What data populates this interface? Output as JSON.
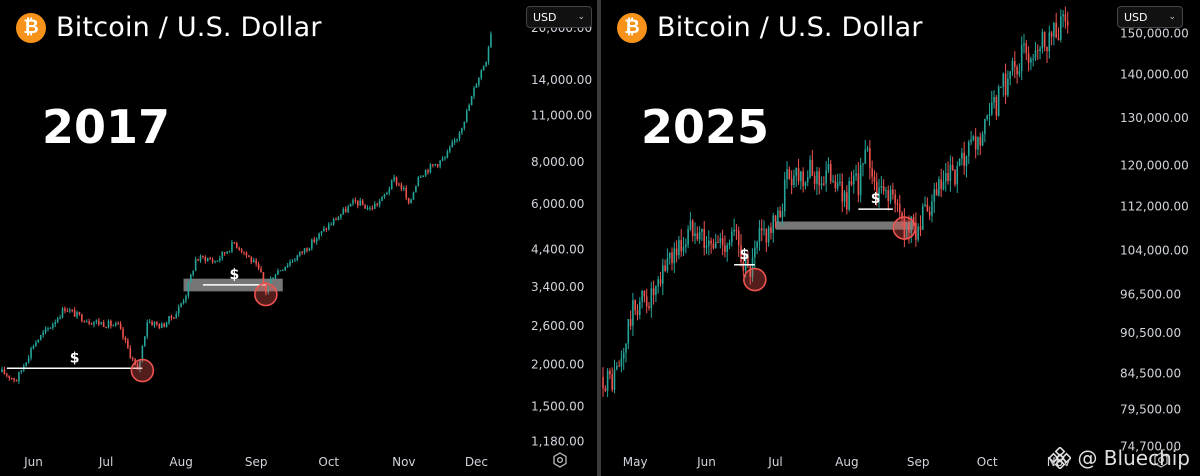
{
  "watermark": {
    "text": "@ Bluechip"
  },
  "colors": {
    "up": "#26a69a",
    "down": "#ef5350",
    "grid_text": "#d1d4dc",
    "btc": "#f7931a",
    "marker": "#ef5350",
    "zone": "#9e9e9e"
  },
  "chart_data": [
    {
      "type": "candlestick",
      "title": "Bitcoin / U.S. Dollar",
      "btc_symbol": "₿",
      "label": "2017",
      "currency": "USD",
      "chevron": "⌄",
      "scale": "log",
      "yrange": [
        1100,
        22000
      ],
      "yticks": [
        20000,
        14000,
        11000,
        8000,
        6000,
        4400,
        3400,
        2600,
        2000,
        1500,
        1180
      ],
      "ytick_labels": [
        "20,000.00",
        "14,000.00",
        "11,000.00",
        "8,000.00",
        "6,000.00",
        "4,400.00",
        "3,400.00",
        "2,600.00",
        "2,000.00",
        "1,500.00",
        "1,180.00"
      ],
      "xlabels": [
        "Jun",
        "Jul",
        "Aug",
        "Sep",
        "Oct",
        "Nov",
        "Dec"
      ],
      "xlabel_days": [
        13,
        43,
        74,
        105,
        135,
        166,
        196
      ],
      "day_range": [
        0,
        214
      ],
      "settings_icon": "gear-icon",
      "price_path": [
        [
          0,
          1900
        ],
        [
          6,
          1800
        ],
        [
          13,
          2300
        ],
        [
          20,
          2600
        ],
        [
          26,
          2950
        ],
        [
          31,
          2800
        ],
        [
          36,
          2700
        ],
        [
          42,
          2650
        ],
        [
          48,
          2600
        ],
        [
          53,
          2150
        ],
        [
          56,
          1900
        ],
        [
          60,
          2700
        ],
        [
          66,
          2600
        ],
        [
          72,
          2850
        ],
        [
          76,
          3250
        ],
        [
          80,
          4100
        ],
        [
          84,
          4150
        ],
        [
          88,
          4050
        ],
        [
          92,
          4300
        ],
        [
          96,
          4600
        ],
        [
          99,
          4400
        ],
        [
          104,
          4000
        ],
        [
          107,
          3700
        ],
        [
          109,
          3300
        ],
        [
          112,
          3700
        ],
        [
          116,
          3900
        ],
        [
          122,
          4200
        ],
        [
          128,
          4600
        ],
        [
          134,
          5100
        ],
        [
          140,
          5600
        ],
        [
          146,
          6100
        ],
        [
          152,
          5800
        ],
        [
          157,
          6200
        ],
        [
          162,
          7100
        ],
        [
          166,
          6600
        ],
        [
          168,
          5900
        ],
        [
          172,
          7300
        ],
        [
          178,
          7800
        ],
        [
          183,
          8200
        ],
        [
          188,
          9500
        ],
        [
          192,
          11200
        ],
        [
          196,
          13800
        ],
        [
          200,
          16200
        ],
        [
          202,
          19500
        ]
      ],
      "annotations": [
        {
          "label": "$",
          "y": 1950,
          "x1": 2,
          "x2": 58
        },
        {
          "label": "$",
          "y": 3450,
          "x1": 83,
          "x2": 109
        }
      ],
      "circles": [
        {
          "x": 58,
          "y": 1920
        },
        {
          "x": 109,
          "y": 3230
        }
      ],
      "zones": [
        {
          "x1": 75,
          "x2": 116,
          "y_low": 3300,
          "y_high": 3600
        }
      ]
    },
    {
      "type": "candlestick",
      "title": "Bitcoin / U.S. Dollar",
      "btc_symbol": "₿",
      "label": "2025",
      "currency": "USD",
      "chevron": "⌄",
      "scale": "log",
      "yrange": [
        74000,
        155000
      ],
      "yticks": [
        150000,
        140000,
        130000,
        120000,
        112000,
        104000,
        96500,
        90500,
        84500,
        79500,
        74700
      ],
      "ytick_labels": [
        "150,000.00",
        "140,000.00",
        "130,000.00",
        "120,000.00",
        "112,000.00",
        "104,000.00",
        "96,500.00",
        "90,500.00",
        "84,500.00",
        "79,500.00",
        "74,700.00"
      ],
      "xlabels": [
        "May",
        "Jun",
        "Jul",
        "Aug",
        "Sep",
        "Oct",
        "Nov"
      ],
      "xlabel_days": [
        14,
        45,
        75,
        106,
        137,
        167,
        198
      ],
      "day_range": [
        0,
        213
      ],
      "settings_icon": "gear-icon",
      "price_path": [
        [
          0,
          84000
        ],
        [
          4,
          83500
        ],
        [
          8,
          86000
        ],
        [
          12,
          93000
        ],
        [
          16,
          95500
        ],
        [
          20,
          96000
        ],
        [
          24,
          97000
        ],
        [
          28,
          103000
        ],
        [
          32,
          104000
        ],
        [
          36,
          106000
        ],
        [
          40,
          109500
        ],
        [
          43,
          107000
        ],
        [
          46,
          104500
        ],
        [
          50,
          105500
        ],
        [
          54,
          106000
        ],
        [
          57,
          106500
        ],
        [
          60,
          104000
        ],
        [
          63,
          100000
        ],
        [
          65,
          101000
        ],
        [
          68,
          106000
        ],
        [
          72,
          108000
        ],
        [
          76,
          109000
        ],
        [
          80,
          118000
        ],
        [
          84,
          119000
        ],
        [
          88,
          118500
        ],
        [
          92,
          118000
        ],
        [
          96,
          117500
        ],
        [
          100,
          119000
        ],
        [
          104,
          113500
        ],
        [
          108,
          115000
        ],
        [
          111,
          117000
        ],
        [
          114,
          121500
        ],
        [
          116,
          121000
        ],
        [
          118,
          117000
        ],
        [
          120,
          114000
        ],
        [
          124,
          115500
        ],
        [
          128,
          111000
        ],
        [
          131,
          108500
        ],
        [
          134,
          108000
        ],
        [
          138,
          109000
        ],
        [
          142,
          111000
        ],
        [
          146,
          115000
        ],
        [
          150,
          117000
        ],
        [
          154,
          118000
        ],
        [
          158,
          121500
        ],
        [
          162,
          124000
        ],
        [
          166,
          127000
        ],
        [
          170,
          132000
        ],
        [
          174,
          137000
        ],
        [
          178,
          141500
        ],
        [
          182,
          144000
        ],
        [
          186,
          146000
        ],
        [
          190,
          148500
        ],
        [
          194,
          149500
        ],
        [
          198,
          151500
        ],
        [
          202,
          153500
        ]
      ],
      "annotations": [
        {
          "label": "$",
          "y": 101500,
          "x1": 57,
          "x2": 66
        },
        {
          "label": "$",
          "y": 111500,
          "x1": 111,
          "x2": 126
        }
      ],
      "circles": [
        {
          "x": 66,
          "y": 99000
        },
        {
          "x": 131,
          "y": 108000
        }
      ],
      "zones": [
        {
          "x1": 75,
          "x2": 135,
          "y_low": 107700,
          "y_high": 109200
        }
      ]
    }
  ]
}
